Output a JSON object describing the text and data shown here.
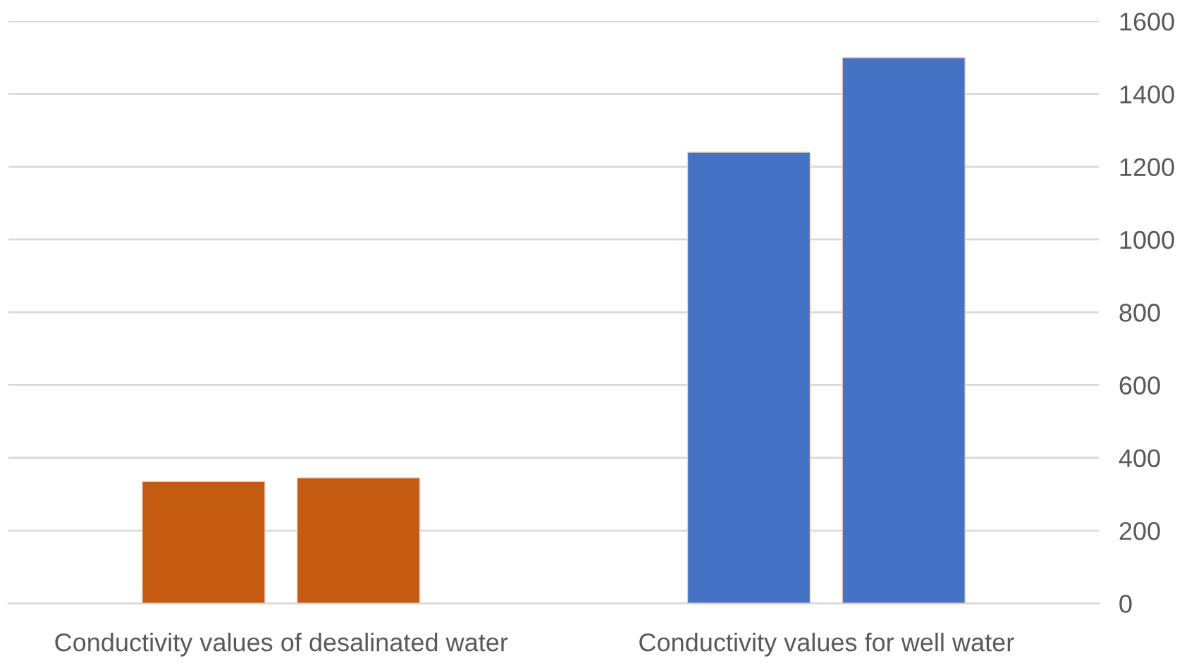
{
  "chart_data": {
    "type": "bar",
    "categories": [
      "Conductivity values of desalinated water",
      "Conductivity values for well water"
    ],
    "series": [
      {
        "colors": [
          "#c55a11",
          "#4472c4"
        ],
        "values": [
          335,
          1240
        ]
      },
      {
        "colors": [
          "#c55a11",
          "#4472c4"
        ],
        "values": [
          345,
          1500
        ]
      }
    ],
    "ylim": [
      0,
      1600
    ],
    "yticks": [
      0,
      200,
      400,
      600,
      800,
      1000,
      1200,
      1400,
      1600
    ],
    "grid": "y"
  }
}
